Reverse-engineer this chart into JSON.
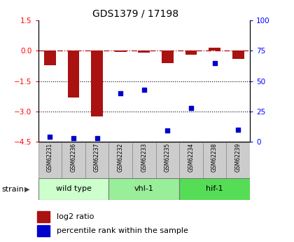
{
  "title": "GDS1379 / 17198",
  "samples": [
    "GSM62231",
    "GSM62236",
    "GSM62237",
    "GSM62232",
    "GSM62233",
    "GSM62235",
    "GSM62234",
    "GSM62238",
    "GSM62239"
  ],
  "log2_ratio": [
    -0.7,
    -2.3,
    -3.25,
    -0.05,
    -0.1,
    -0.6,
    -0.2,
    0.15,
    -0.4
  ],
  "percentile_rank": [
    4,
    3,
    3,
    40,
    43,
    9,
    28,
    65,
    10
  ],
  "groups": [
    {
      "label": "wild type",
      "indices": [
        0,
        1,
        2
      ],
      "color": "#ccffcc"
    },
    {
      "label": "vhl-1",
      "indices": [
        3,
        4,
        5
      ],
      "color": "#99ee99"
    },
    {
      "label": "hif-1",
      "indices": [
        6,
        7,
        8
      ],
      "color": "#55dd55"
    }
  ],
  "ylim_left": [
    -4.5,
    1.5
  ],
  "ylim_right": [
    0,
    100
  ],
  "left_ticks": [
    1.5,
    0,
    -1.5,
    -3,
    -4.5
  ],
  "right_ticks": [
    100,
    75,
    50,
    25,
    0
  ],
  "dotted_lines": [
    -1.5,
    -3
  ],
  "bar_color": "#aa1111",
  "point_color": "#0000cc",
  "strain_label": "strain",
  "legend_bar": "log2 ratio",
  "legend_point": "percentile rank within the sample"
}
